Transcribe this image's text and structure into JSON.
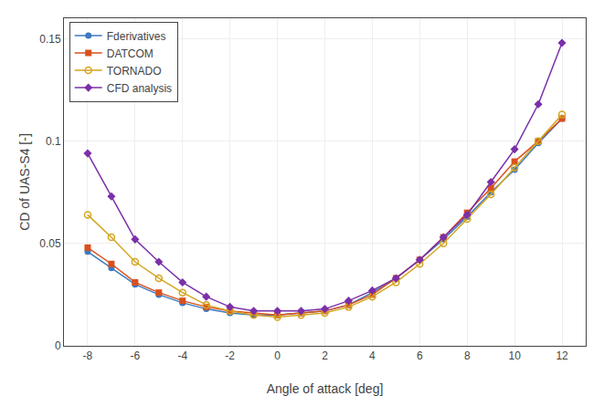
{
  "chart_data": {
    "type": "line",
    "x": [
      -8,
      -7,
      -6,
      -5,
      -4,
      -3,
      -2,
      -1,
      0,
      1,
      2,
      3,
      4,
      5,
      6,
      7,
      8,
      9,
      10,
      11,
      12
    ],
    "series": [
      {
        "name": "Fderivatives",
        "color": "#3d7abf",
        "marker": "circle",
        "values": [
          0.046,
          0.038,
          0.03,
          0.025,
          0.021,
          0.018,
          0.016,
          0.015,
          0.015,
          0.016,
          0.017,
          0.02,
          0.026,
          0.033,
          0.042,
          0.052,
          0.063,
          0.075,
          0.086,
          0.099,
          0.111
        ]
      },
      {
        "name": "DATCOM",
        "color": "#d9501e",
        "marker": "square",
        "values": [
          0.048,
          0.04,
          0.031,
          0.026,
          0.022,
          0.019,
          0.017,
          0.016,
          0.015,
          0.016,
          0.017,
          0.02,
          0.025,
          0.033,
          0.042,
          0.053,
          0.065,
          0.077,
          0.09,
          0.1,
          0.111
        ]
      },
      {
        "name": "TORNADO",
        "color": "#d4a520",
        "marker": "circle-open",
        "values": [
          0.064,
          0.053,
          0.041,
          0.033,
          0.026,
          0.02,
          0.017,
          0.015,
          0.014,
          0.015,
          0.016,
          0.019,
          0.024,
          0.031,
          0.04,
          0.05,
          0.062,
          0.074,
          0.087,
          0.1,
          0.113
        ]
      },
      {
        "name": "CFD analysis",
        "color": "#7b2fa8",
        "marker": "diamond",
        "values": [
          0.094,
          0.073,
          0.052,
          0.041,
          0.031,
          0.024,
          0.019,
          0.017,
          0.017,
          0.017,
          0.018,
          0.022,
          0.027,
          0.033,
          0.042,
          0.053,
          0.064,
          0.08,
          0.096,
          0.118,
          0.148
        ]
      }
    ],
    "xlabel": "Angle of attack [deg]",
    "ylabel": "CD of UAS-S4 [-]",
    "xlim": [
      -9,
      13
    ],
    "ylim": [
      0,
      0.16
    ],
    "xticks": [
      -8,
      -6,
      -4,
      -2,
      0,
      2,
      4,
      6,
      8,
      10,
      12
    ],
    "yticks": [
      0,
      0.05,
      0.1,
      0.15
    ],
    "grid": true,
    "legend": "upper left"
  }
}
